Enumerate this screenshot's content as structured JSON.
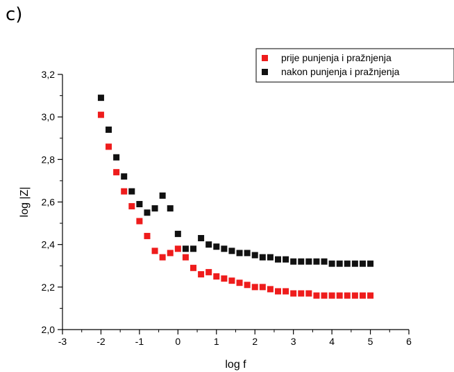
{
  "panel_label": "c)",
  "chart_data": {
    "type": "scatter",
    "title": "",
    "xlabel": "log f",
    "ylabel": "log |Z|",
    "xlim": [
      -3,
      6
    ],
    "ylim": [
      2.0,
      3.2
    ],
    "x_ticks": [
      -3,
      -2,
      -1,
      0,
      1,
      2,
      3,
      4,
      5,
      6
    ],
    "x_tick_labels": [
      "-3",
      "-2",
      "-1",
      "0",
      "1",
      "2",
      "3",
      "4",
      "5",
      "6"
    ],
    "y_ticks": [
      2.0,
      2.2,
      2.4,
      2.6,
      2.8,
      3.0,
      3.2
    ],
    "y_tick_labels": [
      "2,0",
      "2,2",
      "2,4",
      "2,6",
      "2,8",
      "3,0",
      "3,2"
    ],
    "grid": false,
    "legend_position": "top-right",
    "series": [
      {
        "name": "prije punjenja i pražnjenja",
        "color": "#ee1c1c",
        "marker": "square",
        "x": [
          -2.0,
          -1.8,
          -1.6,
          -1.4,
          -1.2,
          -1.0,
          -0.8,
          -0.6,
          -0.4,
          -0.2,
          0.0,
          0.2,
          0.4,
          0.6,
          0.8,
          1.0,
          1.2,
          1.4,
          1.6,
          1.8,
          2.0,
          2.2,
          2.4,
          2.6,
          2.8,
          3.0,
          3.2,
          3.4,
          3.6,
          3.8,
          4.0,
          4.2,
          4.4,
          4.6,
          4.8,
          5.0
        ],
        "y": [
          3.01,
          2.86,
          2.74,
          2.65,
          2.58,
          2.51,
          2.44,
          2.37,
          2.34,
          2.36,
          2.38,
          2.34,
          2.29,
          2.26,
          2.27,
          2.25,
          2.24,
          2.23,
          2.22,
          2.21,
          2.2,
          2.2,
          2.19,
          2.18,
          2.18,
          2.17,
          2.17,
          2.17,
          2.16,
          2.16,
          2.16,
          2.16,
          2.16,
          2.16,
          2.16,
          2.16
        ]
      },
      {
        "name": "nakon punjenja i pražnjenja",
        "color": "#111111",
        "marker": "square",
        "x": [
          -2.0,
          -1.8,
          -1.6,
          -1.4,
          -1.2,
          -1.0,
          -0.8,
          -0.6,
          -0.4,
          -0.2,
          0.0,
          0.2,
          0.4,
          0.6,
          0.8,
          1.0,
          1.2,
          1.4,
          1.6,
          1.8,
          2.0,
          2.2,
          2.4,
          2.6,
          2.8,
          3.0,
          3.2,
          3.4,
          3.6,
          3.8,
          4.0,
          4.2,
          4.4,
          4.6,
          4.8,
          5.0
        ],
        "y": [
          3.09,
          2.94,
          2.81,
          2.72,
          2.65,
          2.59,
          2.55,
          2.57,
          2.63,
          2.57,
          2.45,
          2.38,
          2.38,
          2.43,
          2.4,
          2.39,
          2.38,
          2.37,
          2.36,
          2.36,
          2.35,
          2.34,
          2.34,
          2.33,
          2.33,
          2.32,
          2.32,
          2.32,
          2.32,
          2.32,
          2.31,
          2.31,
          2.31,
          2.31,
          2.31,
          2.31
        ]
      }
    ]
  }
}
